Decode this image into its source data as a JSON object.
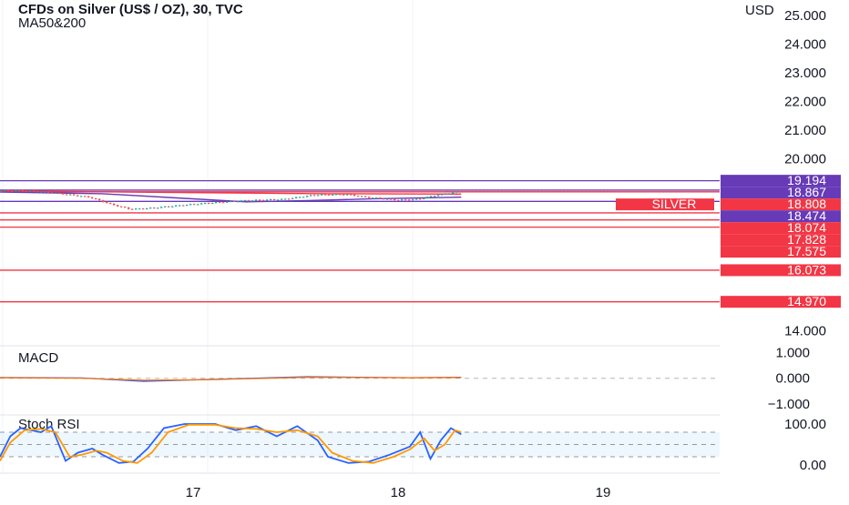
{
  "header": {
    "title": "CFDs on Silver (US$ / OZ), 30, TVC",
    "indicator": "MA50&200",
    "currency": "USD"
  },
  "colors": {
    "red": "#f23645",
    "purple": "#673ab7",
    "up": "#26a69a",
    "down": "#ef5350",
    "macd": "#2962ff",
    "signal": "#ff6d00",
    "stoch_k": "#2962ff",
    "stoch_d": "#ff9800"
  },
  "chart_data": [
    {
      "type": "candlestick",
      "name": "price",
      "ylim": [
        13.5,
        25.5
      ],
      "y_ticks": [
        "25.000",
        "24.000",
        "23.000",
        "22.000",
        "21.000",
        "20.000",
        "14.000"
      ],
      "x_ticks": [
        "17",
        "18",
        "19"
      ],
      "price_levels": [
        {
          "label": "19.194",
          "value": 19.194,
          "color": "purple"
        },
        {
          "label": "18.867",
          "value": 18.867,
          "color": "purple"
        },
        {
          "label": "18.808",
          "value": 18.808,
          "color": "red",
          "tag": "SILVER"
        },
        {
          "label": "18.474",
          "value": 18.474,
          "color": "purple"
        },
        {
          "label": "18.074",
          "value": 18.074,
          "color": "red"
        },
        {
          "label": "17.828",
          "value": 17.828,
          "color": "red"
        },
        {
          "label": "17.575",
          "value": 17.575,
          "color": "red"
        },
        {
          "label": "16.073",
          "value": 16.073,
          "color": "red"
        },
        {
          "label": "14.970",
          "value": 14.97,
          "color": "red"
        }
      ],
      "price_path": [
        [
          0,
          18.83
        ],
        [
          0.1,
          18.85
        ],
        [
          0.2,
          18.82
        ],
        [
          0.3,
          18.75
        ],
        [
          0.45,
          18.62
        ],
        [
          0.55,
          18.38
        ],
        [
          0.65,
          18.2
        ],
        [
          0.75,
          18.24
        ],
        [
          0.9,
          18.34
        ],
        [
          1.0,
          18.4
        ],
        [
          1.2,
          18.5
        ],
        [
          1.4,
          18.55
        ],
        [
          1.55,
          18.7
        ],
        [
          1.7,
          18.72
        ],
        [
          1.8,
          18.62
        ],
        [
          1.95,
          18.52
        ],
        [
          2.05,
          18.55
        ],
        [
          2.15,
          18.7
        ],
        [
          2.25,
          18.81
        ]
      ],
      "ma_lines": [
        {
          "points": [
            [
              0,
              18.8
            ],
            [
              0.5,
              18.74
            ],
            [
              0.9,
              18.58
            ],
            [
              1.2,
              18.46
            ],
            [
              1.5,
              18.5
            ],
            [
              1.8,
              18.56
            ],
            [
              2.25,
              18.62
            ]
          ]
        },
        {
          "points": [
            [
              0,
              18.84
            ],
            [
              0.8,
              18.79
            ],
            [
              1.6,
              18.74
            ],
            [
              2.25,
              18.73
            ]
          ]
        }
      ]
    },
    {
      "type": "line",
      "name": "MACD",
      "title": "MACD",
      "ylim": [
        -1.4,
        1.2
      ],
      "y_ticks": [
        "1.000",
        "0.000",
        "−1.000"
      ],
      "series": [
        {
          "values": [
            [
              0,
              0.03
            ],
            [
              0.4,
              0.01
            ],
            [
              0.7,
              -0.12
            ],
            [
              1.0,
              -0.05
            ],
            [
              1.5,
              0.06
            ],
            [
              2.0,
              0.02
            ],
            [
              2.25,
              0.04
            ]
          ]
        },
        {
          "values": [
            [
              0,
              0.02
            ],
            [
              0.4,
              0.0
            ],
            [
              0.7,
              -0.08
            ],
            [
              1.0,
              -0.06
            ],
            [
              1.5,
              0.04
            ],
            [
              2.0,
              0.02
            ],
            [
              2.25,
              0.03
            ]
          ]
        }
      ]
    },
    {
      "type": "line",
      "name": "Stoch RSI",
      "title": "Stoch RSI",
      "ylim": [
        -20,
        120
      ],
      "y_ticks": [
        "100.00",
        "0.00"
      ],
      "series": [
        {
          "values": [
            [
              0,
              20
            ],
            [
              0.05,
              70
            ],
            [
              0.1,
              90
            ],
            [
              0.2,
              80
            ],
            [
              0.25,
              95
            ],
            [
              0.32,
              10
            ],
            [
              0.38,
              30
            ],
            [
              0.45,
              40
            ],
            [
              0.5,
              25
            ],
            [
              0.58,
              5
            ],
            [
              0.65,
              8
            ],
            [
              0.72,
              40
            ],
            [
              0.8,
              90
            ],
            [
              0.9,
              100
            ],
            [
              1.05,
              100
            ],
            [
              1.15,
              85
            ],
            [
              1.25,
              95
            ],
            [
              1.35,
              70
            ],
            [
              1.45,
              95
            ],
            [
              1.55,
              60
            ],
            [
              1.6,
              20
            ],
            [
              1.7,
              5
            ],
            [
              1.8,
              8
            ],
            [
              1.9,
              25
            ],
            [
              2.0,
              45
            ],
            [
              2.05,
              80
            ],
            [
              2.1,
              15
            ],
            [
              2.15,
              60
            ],
            [
              2.2,
              90
            ],
            [
              2.25,
              75
            ]
          ]
        },
        {
          "values": [
            [
              0,
              10
            ],
            [
              0.05,
              55
            ],
            [
              0.12,
              85
            ],
            [
              0.2,
              88
            ],
            [
              0.27,
              80
            ],
            [
              0.34,
              20
            ],
            [
              0.4,
              25
            ],
            [
              0.47,
              35
            ],
            [
              0.52,
              30
            ],
            [
              0.6,
              10
            ],
            [
              0.67,
              5
            ],
            [
              0.74,
              30
            ],
            [
              0.82,
              80
            ],
            [
              0.92,
              98
            ],
            [
              1.05,
              98
            ],
            [
              1.15,
              90
            ],
            [
              1.25,
              88
            ],
            [
              1.35,
              80
            ],
            [
              1.45,
              85
            ],
            [
              1.55,
              70
            ],
            [
              1.62,
              30
            ],
            [
              1.72,
              10
            ],
            [
              1.82,
              5
            ],
            [
              1.92,
              20
            ],
            [
              2.0,
              38
            ],
            [
              2.07,
              65
            ],
            [
              2.12,
              35
            ],
            [
              2.17,
              50
            ],
            [
              2.22,
              85
            ],
            [
              2.25,
              80
            ]
          ]
        }
      ]
    }
  ]
}
